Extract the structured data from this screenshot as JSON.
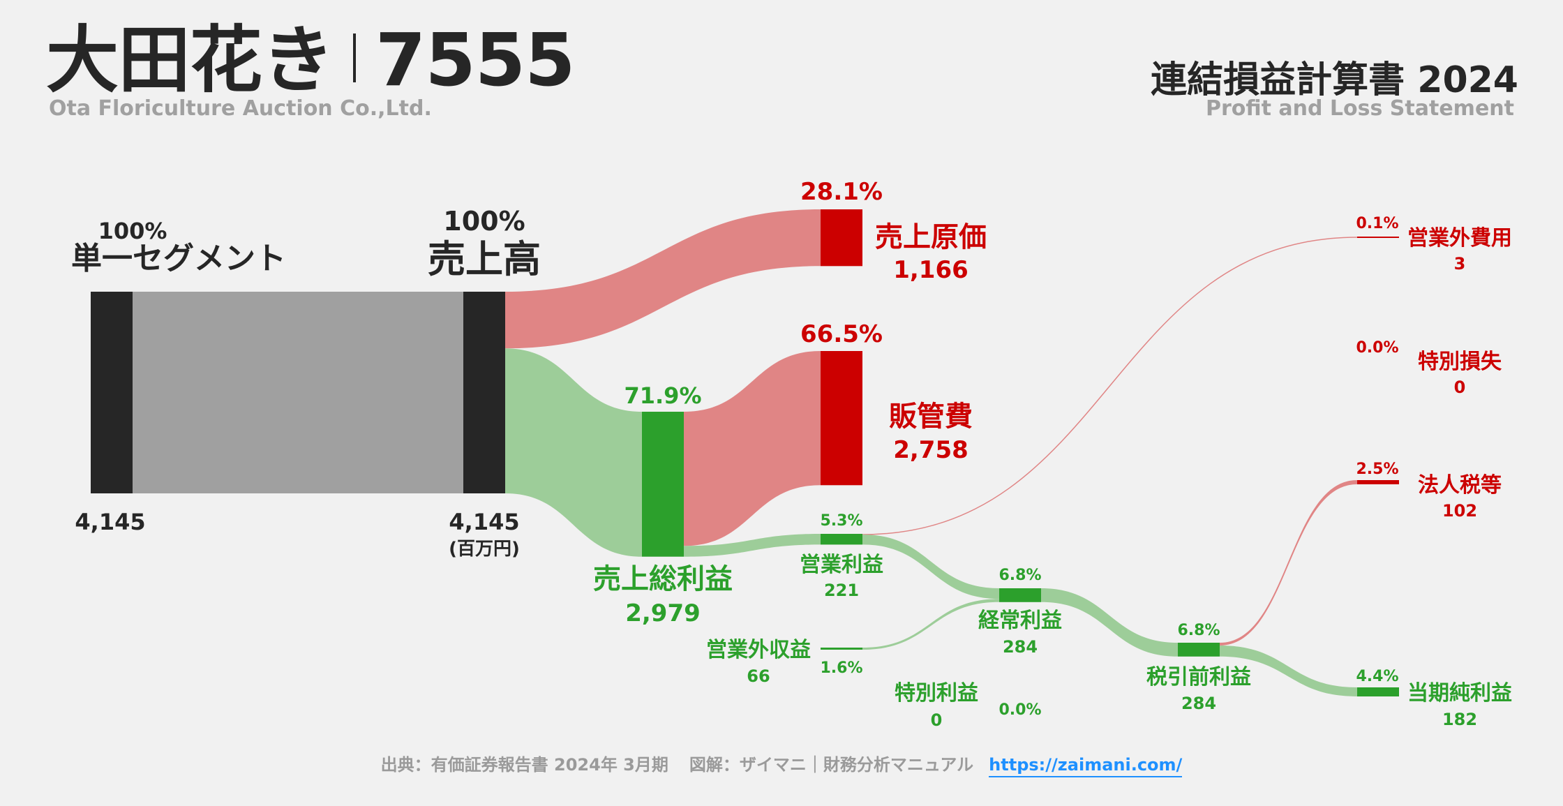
{
  "header": {
    "company": "大田花き",
    "ticker": "7555",
    "company_en": "Ota Floriculture Auction Co.,Ltd.",
    "statement": "連結損益計算書 2024",
    "statement_en": "Profit and Loss Statement"
  },
  "footer": {
    "source": "出典：有価証券報告書 2024年 3月期",
    "credit": "図解：ザイマニ｜財務分析マニュアル",
    "link": "https://zaimani.com/"
  },
  "colors": {
    "dark": "#262626",
    "gray_flow": "#a0a0a0",
    "red": "#cc0000",
    "red_flow": "#e08585",
    "green": "#2ca02c",
    "green_flow": "#9dcd99",
    "text_gray": "#9a9a9a",
    "link": "#1e90ff"
  },
  "chart_data": {
    "type": "sankey",
    "unit": "(百万円)",
    "nodes": [
      {
        "id": "segment",
        "name": "単一セグメント",
        "value": 4145,
        "value_label": "4,145",
        "pct_label": "100%",
        "kind": "neutral"
      },
      {
        "id": "revenue",
        "name": "売上高",
        "value": 4145,
        "value_label": "4,145",
        "pct_label": "100%",
        "kind": "neutral"
      },
      {
        "id": "cogs",
        "name": "売上原価",
        "value": 1166,
        "value_label": "1,166",
        "pct_label": "28.1%",
        "kind": "cost"
      },
      {
        "id": "gross",
        "name": "売上総利益",
        "value": 2979,
        "value_label": "2,979",
        "pct_label": "71.9%",
        "kind": "profit"
      },
      {
        "id": "sga",
        "name": "販管費",
        "value": 2758,
        "value_label": "2,758",
        "pct_label": "66.5%",
        "kind": "cost"
      },
      {
        "id": "op",
        "name": "営業利益",
        "value": 221,
        "value_label": "221",
        "pct_label": "5.3%",
        "kind": "profit"
      },
      {
        "id": "nonop_inc",
        "name": "営業外収益",
        "value": 66,
        "value_label": "66",
        "pct_label": "1.6%",
        "kind": "profit"
      },
      {
        "id": "nonop_exp",
        "name": "営業外費用",
        "value": 3,
        "value_label": "3",
        "pct_label": "0.1%",
        "kind": "cost"
      },
      {
        "id": "ordinary",
        "name": "経常利益",
        "value": 284,
        "value_label": "284",
        "pct_label": "6.8%",
        "kind": "profit"
      },
      {
        "id": "ext_gain",
        "name": "特別利益",
        "value": 0,
        "value_label": "0",
        "pct_label": "0.0%",
        "kind": "profit"
      },
      {
        "id": "ext_loss",
        "name": "特別損失",
        "value": 0,
        "value_label": "0",
        "pct_label": "0.0%",
        "kind": "cost"
      },
      {
        "id": "pretax",
        "name": "税引前利益",
        "value": 284,
        "value_label": "284",
        "pct_label": "6.8%",
        "kind": "profit"
      },
      {
        "id": "tax",
        "name": "法人税等",
        "value": 102,
        "value_label": "102",
        "pct_label": "2.5%",
        "kind": "cost"
      },
      {
        "id": "net",
        "name": "当期純利益",
        "value": 182,
        "value_label": "182",
        "pct_label": "4.4%",
        "kind": "profit"
      }
    ],
    "links": [
      {
        "source": "segment",
        "target": "revenue",
        "value": 4145
      },
      {
        "source": "revenue",
        "target": "cogs",
        "value": 1166
      },
      {
        "source": "revenue",
        "target": "gross",
        "value": 2979
      },
      {
        "source": "gross",
        "target": "sga",
        "value": 2758
      },
      {
        "source": "gross",
        "target": "op",
        "value": 221
      },
      {
        "source": "op",
        "target": "nonop_exp",
        "value": 3
      },
      {
        "source": "op",
        "target": "ordinary",
        "value": 218
      },
      {
        "source": "nonop_inc",
        "target": "ordinary",
        "value": 66
      },
      {
        "source": "ordinary",
        "target": "pretax",
        "value": 284
      },
      {
        "source": "pretax",
        "target": "tax",
        "value": 102
      },
      {
        "source": "pretax",
        "target": "net",
        "value": 182
      }
    ]
  }
}
